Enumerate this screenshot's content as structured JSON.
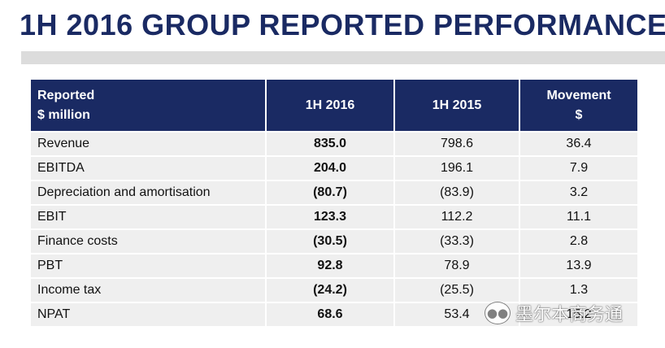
{
  "title": "1H 2016 GROUP REPORTED PERFORMANCE",
  "table": {
    "headers": {
      "label_line1": "Reported",
      "label_line2": "$ million",
      "col1": "1H 2016",
      "col2": "1H 2015",
      "col3_line1": "Movement",
      "col3_line2": "$"
    },
    "rows": [
      {
        "label": "Revenue",
        "h2016": "835.0",
        "h2015": "798.6",
        "movement": "36.4"
      },
      {
        "label": "EBITDA",
        "h2016": "204.0",
        "h2015": "196.1",
        "movement": "7.9"
      },
      {
        "label": "Depreciation and amortisation",
        "h2016": "(80.7)",
        "h2015": "(83.9)",
        "movement": "3.2"
      },
      {
        "label": "EBIT",
        "h2016": "123.3",
        "h2015": "112.2",
        "movement": "11.1"
      },
      {
        "label": "Finance costs",
        "h2016": "(30.5)",
        "h2015": "(33.3)",
        "movement": "2.8"
      },
      {
        "label": "PBT",
        "h2016": "92.8",
        "h2015": "78.9",
        "movement": "13.9"
      },
      {
        "label": "Income tax",
        "h2016": "(24.2)",
        "h2015": "(25.5)",
        "movement": "1.3"
      },
      {
        "label": "NPAT",
        "h2016": "68.6",
        "h2015": "53.4",
        "movement": "15.2"
      }
    ]
  },
  "watermark": {
    "text": "墨尔本商务通",
    "icon": "wechat-icon"
  },
  "colors": {
    "header_bg": "#1a2a63",
    "title_text": "#1a2a63",
    "row_bg": "#efefef",
    "rule": "#dcdcdc"
  }
}
